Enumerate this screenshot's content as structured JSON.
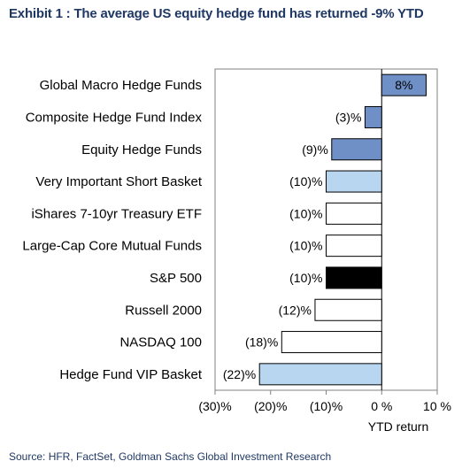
{
  "title": "Exhibit 1 : The average US equity hedge fund has returned -9% YTD",
  "source": "Source: HFR, FactSet, Goldman Sachs Global Investment Research",
  "chart_data": {
    "type": "bar",
    "orientation": "horizontal",
    "categories": [
      "Global Macro Hedge Funds",
      "Composite Hedge Fund Index",
      "Equity Hedge Funds",
      "Very Important Short Basket",
      "iShares 7-10yr Treasury ETF",
      "Large-Cap Core Mutual Funds",
      "S&P 500",
      "Russell 2000",
      "NASDAQ 100",
      "Hedge Fund VIP Basket"
    ],
    "values": [
      8,
      -3,
      -9,
      -10,
      -10,
      -10,
      -10,
      -12,
      -18,
      -22
    ],
    "value_labels": [
      "8%",
      "(3)%",
      "(9)%",
      "(10)%",
      "(10)%",
      "(10)%",
      "(10)%",
      "(12)%",
      "(18)%",
      "(22)%"
    ],
    "bar_colors": [
      "#6f8fc7",
      "#6f8fc7",
      "#6f8fc7",
      "#b9d6f0",
      "#ffffff",
      "#ffffff",
      "#000000",
      "#ffffff",
      "#ffffff",
      "#b9d6f0"
    ],
    "xlim": [
      -30,
      10
    ],
    "xticks": [
      -30,
      -20,
      -10,
      0,
      10
    ],
    "xtick_labels": [
      "(30)%",
      "(20)%",
      "(10)%",
      "0 %",
      "10 %"
    ],
    "xlabel": "YTD return",
    "ylabel": "",
    "grid": false,
    "legend": false
  }
}
